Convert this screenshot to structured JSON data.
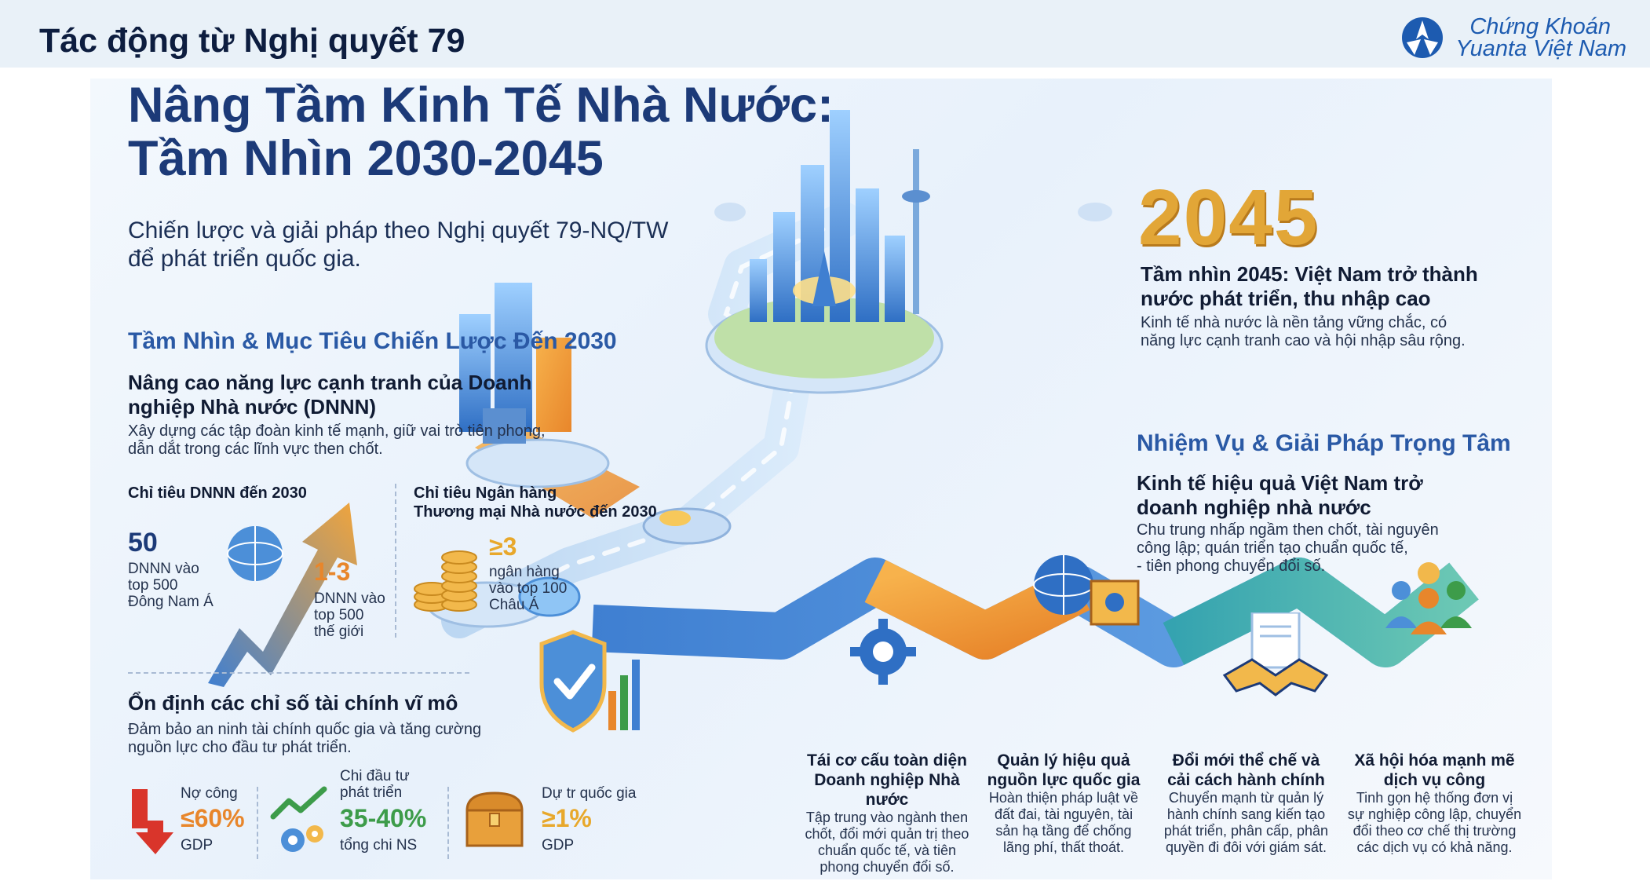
{
  "header": {
    "title": "Tác động từ Nghị quyết 79",
    "logo_line1": "Chứng Khoán",
    "logo_line2": "Yuanta Việt Nam"
  },
  "hero": {
    "title_line1": "Nâng Tầm Kinh Tế Nhà Nước:",
    "title_line2": "Tầm Nhìn 2030-2045",
    "subtitle_line1": "Chiến lược và giải pháp theo Nghị quyết 79-NQ/TW",
    "subtitle_line2": "để phát triển quốc gia."
  },
  "vision2030": {
    "section_title": "Tầm Nhìn & Mục Tiêu Chiến Lược Đến 2030",
    "block_title_line1": "Nâng cao năng lực cạnh tranh của Doanh",
    "block_title_line2": "nghiệp Nhà nước (DNNN)",
    "block_text_line1": "Xây dựng các tập đoàn kinh tế mạnh, giữ vai trò tiên phong,",
    "block_text_line2": "dẫn dắt trong các lĩnh vực then chốt.",
    "dnnn_heading": "Chỉ tiêu DNNN đến 2030",
    "dnnn_sea_value": "50",
    "dnnn_sea_l1": "DNNN vào",
    "dnnn_sea_l2": "top 500",
    "dnnn_sea_l3": "Đông Nam Á",
    "dnnn_world_value": "1-3",
    "dnnn_world_l1": "DNNN vào",
    "dnnn_world_l2": "top 500",
    "dnnn_world_l3": "thế giới",
    "bank_heading_l1": "Chỉ tiêu Ngân hàng",
    "bank_heading_l2": "Thương mại Nhà nước đến 2030",
    "bank_value": "≥3",
    "bank_l1": "ngân hàng",
    "bank_l2": "vào top 100",
    "bank_l3": "Châu Á"
  },
  "macro": {
    "title": "Ổn định các chỉ số tài chính vĩ mô",
    "text_line1": "Đảm bảo an ninh tài chính quốc gia và tăng cường",
    "text_line2": "nguồn lực cho đầu tư phát triển.",
    "debt_label": "Nợ công",
    "debt_value": "≤60%",
    "debt_unit": "GDP",
    "invest_l1": "Chi đầu tư",
    "invest_l2": "phát triển",
    "invest_value": "35-40%",
    "invest_unit": "tổng chi NS",
    "reserve_label": "Dự tr quốc gia",
    "reserve_value": "≥1%",
    "reserve_unit": "GDP"
  },
  "vision2045": {
    "year": "2045",
    "title_line1": "Tầm nhìn 2045: Việt Nam trở thành",
    "title_line2": "nước phát triển, thu nhập cao",
    "text_line1": "Kinh tế nhà nước là nền tảng vững chắc, có",
    "text_line2": "năng lực cạnh tranh cao và hội nhập sâu rộng."
  },
  "tasks": {
    "section_title": "Nhiệm Vụ & Giải Pháp Trọng Tâm",
    "block_title_line1": "Kinh tế hiệu quả Việt Nam trở",
    "block_title_line2": "doanh nghiệp nhà nước",
    "text_line1": "Chu trung nhấp ngầm then chốt, tài nguyên",
    "text_line2": "công lập; quán triển tạo chuẩn quốc tế,",
    "text_line3": "- tiên phong chuyển đổi số."
  },
  "steps": [
    {
      "title_l1": "Tái cơ cấu toàn diện",
      "title_l2": "Doanh nghiệp Nhà nước",
      "t1": "Tập trung vào ngành then",
      "t2": "chốt, đổi mới quản trị theo",
      "t3": "chuẩn quốc tế, và tiên",
      "t4": "phong chuyển đổi số."
    },
    {
      "title_l1": "Quản lý hiệu quả",
      "title_l2": "nguồn lực quốc gia",
      "t1": "Hoàn thiện pháp luật về",
      "t2": "đất đai, tài nguyên, tài",
      "t3": "sản hạ tầng để chống",
      "t4": "lãng phí, thất thoát."
    },
    {
      "title_l1": "Đổi mới thể chế và",
      "title_l2": "cải cách hành chính",
      "t1": "Chuyển mạnh từ quản lý",
      "t2": "hành chính sang kiến tạo",
      "t3": "phát triển, phân cấp, phân",
      "t4": "quyền đi đôi với giám sát."
    },
    {
      "title_l1": "Xã hội hóa mạnh mẽ",
      "title_l2": "dịch vụ công",
      "t1": "Tinh gọn hệ thống đơn vị",
      "t2": "sự nghiệp công lập, chuyển",
      "t3": "đổi theo cơ chế thị trường",
      "t4": "các dịch vụ có khả năng."
    }
  ],
  "colors": {
    "navy": "#1c3a78",
    "accent_blue": "#2a59a5",
    "orange": "#e8862b",
    "gold": "#e2a637",
    "green": "#3d9c4a",
    "red": "#d9352b"
  }
}
